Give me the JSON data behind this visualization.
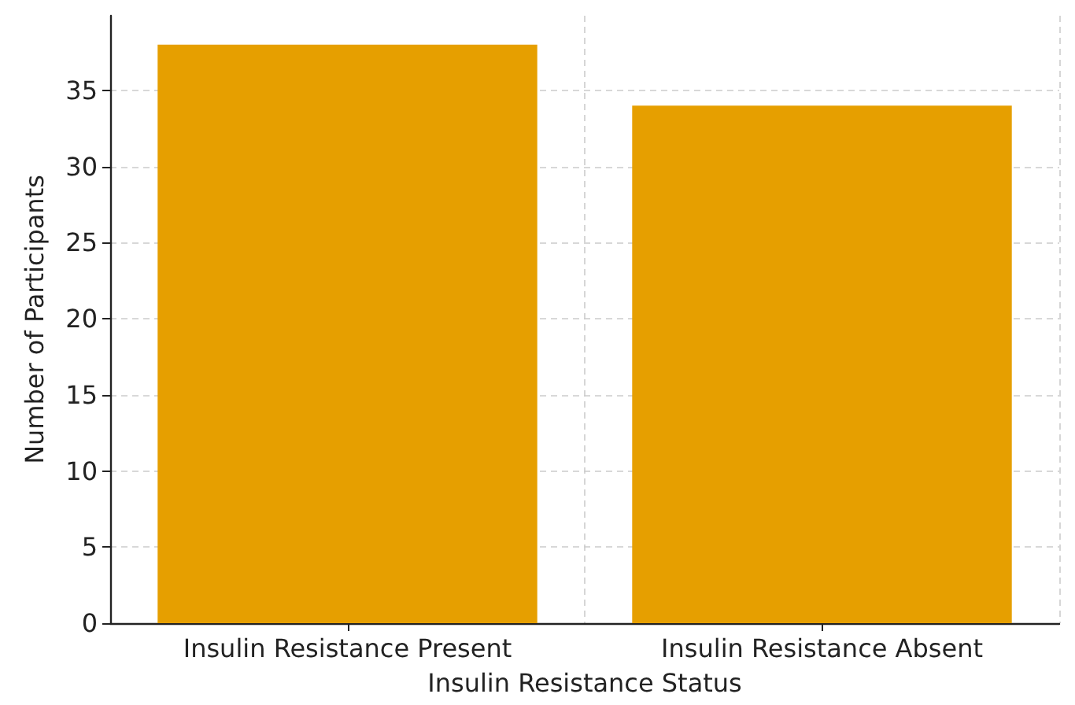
{
  "chart_data": {
    "type": "bar",
    "xlabel": "Insulin Resistance Status",
    "ylabel": "Number of Participants",
    "categories": [
      "Insulin Resistance Present",
      "Insulin Resistance Absent"
    ],
    "values": [
      38,
      34
    ],
    "color": "#e69f00",
    "ylim": [
      0,
      39.9
    ],
    "yticks": [
      0,
      5,
      10,
      15,
      20,
      25,
      30,
      35
    ],
    "grid": true
  }
}
